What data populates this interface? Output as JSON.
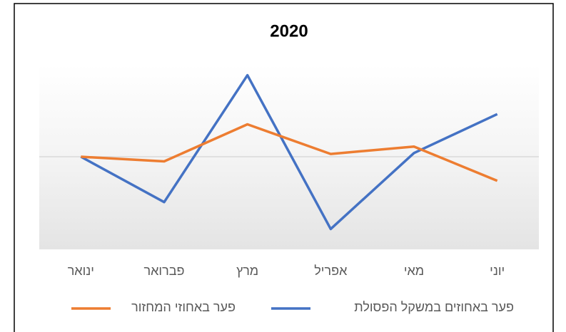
{
  "chart_data": {
    "type": "line",
    "title": "2020",
    "categories": [
      "ינואר",
      "פברואר",
      "מרץ",
      "אפריל",
      "מאי",
      "יוני"
    ],
    "series": [
      {
        "name": "פער באחוזים במשקל הפסולת",
        "color": "#4472c4",
        "values": [
          0,
          -4.9,
          8.8,
          -7.8,
          0.4,
          4.6
        ]
      },
      {
        "name": "פער באחוזי המחזור",
        "color": "#ed7d31",
        "values": [
          0,
          -0.5,
          3.5,
          0.3,
          1.1,
          -2.6
        ]
      }
    ],
    "ylim": [
      -10,
      10
    ]
  }
}
